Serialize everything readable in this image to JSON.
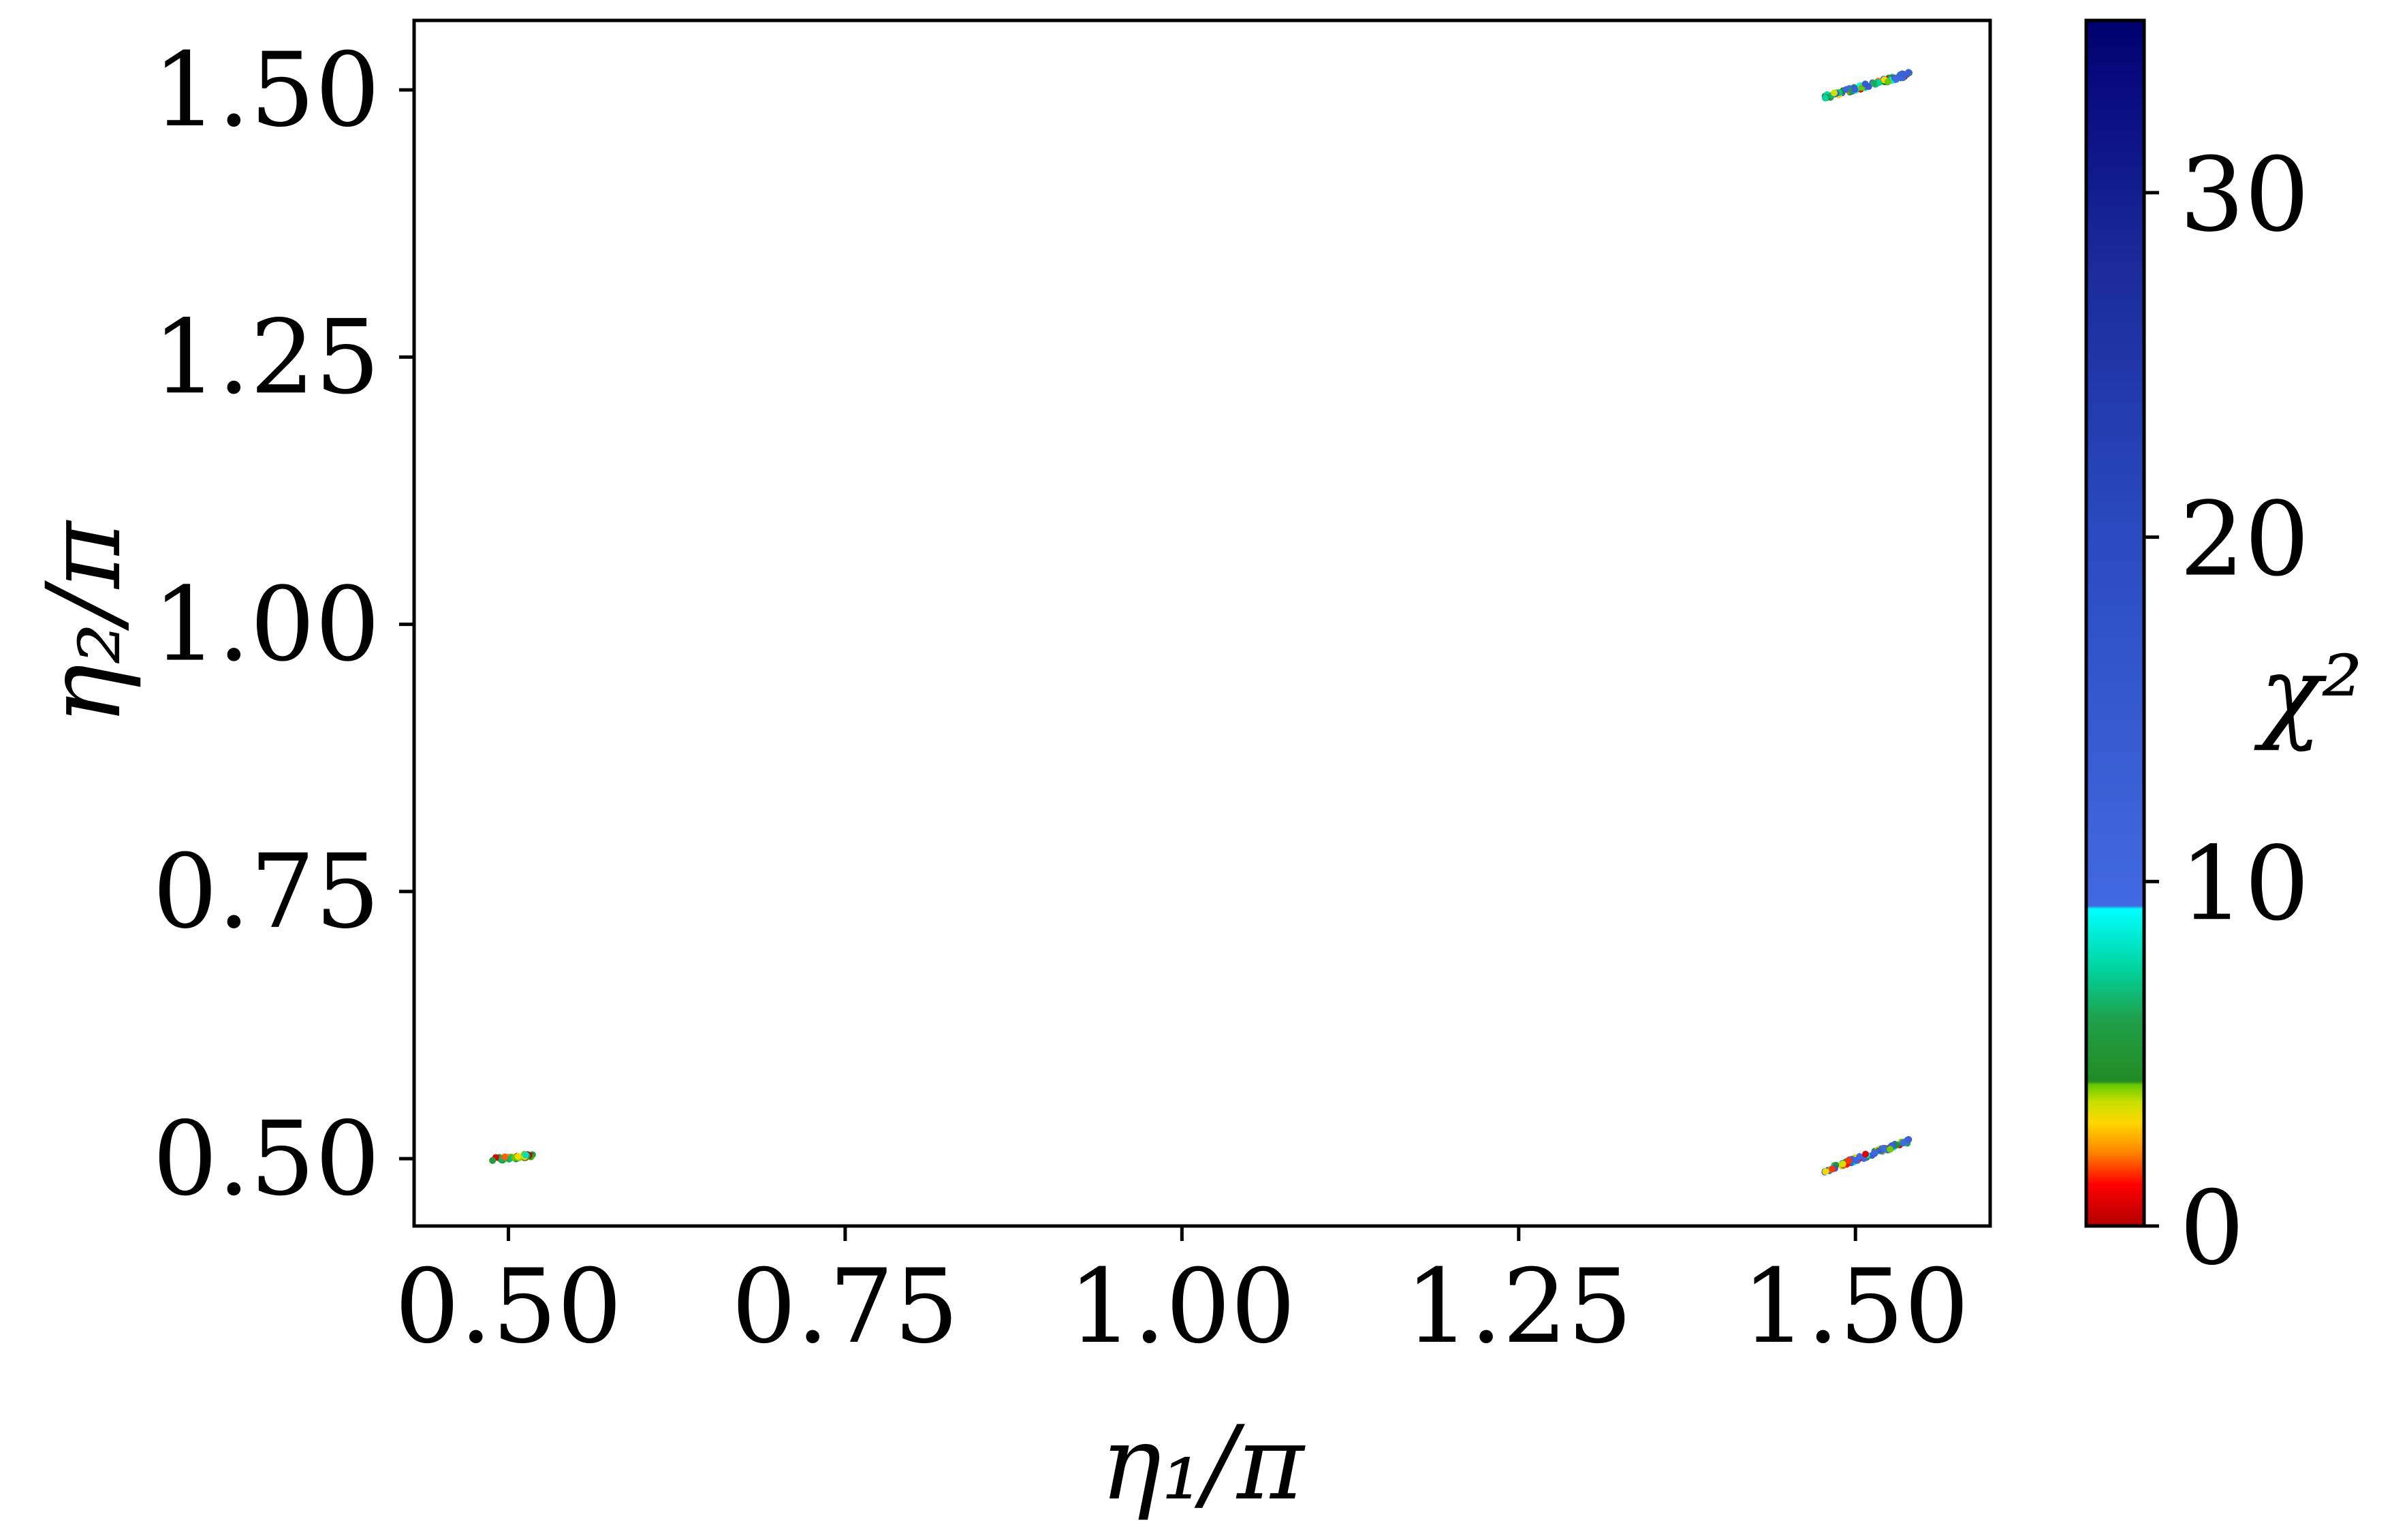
{
  "chart_data": {
    "type": "scatter",
    "title": "",
    "xlabel": "η₁/π",
    "ylabel": "η₂/π",
    "colorbar_label": "χ²",
    "xlim": [
      0.43,
      1.6
    ],
    "ylim": [
      0.437,
      1.565
    ],
    "xticks": [
      0.5,
      0.75,
      1.0,
      1.25,
      1.5
    ],
    "xtick_labels": [
      "0.50",
      "0.75",
      "1.00",
      "1.25",
      "1.50"
    ],
    "yticks": [
      0.5,
      0.75,
      1.0,
      1.25,
      1.5
    ],
    "ytick_labels": [
      "0.50",
      "0.75",
      "1.00",
      "1.25",
      "1.50"
    ],
    "colorbar": {
      "range": [
        0,
        35
      ],
      "ticks": [
        0,
        10,
        20,
        30
      ],
      "tick_labels": [
        "0",
        "10",
        "20",
        "30"
      ],
      "stops": [
        {
          "value": 0,
          "color": "#b00000"
        },
        {
          "value": 1.2,
          "color": "#ff0000"
        },
        {
          "value": 2.2,
          "color": "#ff8c00"
        },
        {
          "value": 3.0,
          "color": "#ffd700"
        },
        {
          "value": 3.6,
          "color": "#c8e000"
        },
        {
          "value": 4.1,
          "color": "#66c800"
        },
        {
          "value": 4.2,
          "color": "#228b22"
        },
        {
          "value": 6.0,
          "color": "#1fa04a"
        },
        {
          "value": 7.5,
          "color": "#00d4a0"
        },
        {
          "value": 9.2,
          "color": "#00ffff"
        },
        {
          "value": 9.3,
          "color": "#4169e1"
        },
        {
          "value": 20,
          "color": "#2a4bbf"
        },
        {
          "value": 28,
          "color": "#1a2a9a"
        },
        {
          "value": 35,
          "color": "#000070"
        }
      ]
    },
    "clusters": [
      {
        "x_range": [
          0.488,
          0.518
        ],
        "y_range": [
          0.499,
          0.503
        ],
        "n": 40,
        "chi2_max": 8
      },
      {
        "x_range": [
          1.477,
          1.54
        ],
        "y_range": [
          0.489,
          0.517
        ],
        "n": 90,
        "chi2_max": 15
      },
      {
        "x_range": [
          1.477,
          1.54
        ],
        "y_range": [
          1.493,
          1.515
        ],
        "n": 90,
        "chi2_max": 15
      }
    ],
    "grid": false
  }
}
